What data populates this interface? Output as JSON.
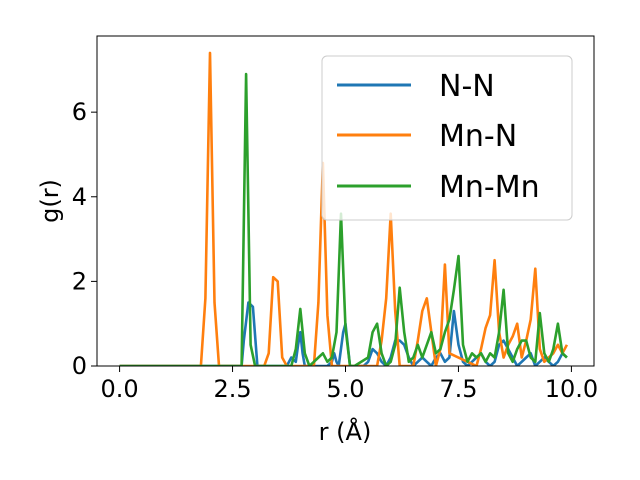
{
  "chart_data": {
    "type": "line",
    "xlabel": "r (Å)",
    "ylabel": "g(r)",
    "xlim": [
      -0.5,
      10.5
    ],
    "ylim": [
      0,
      7.8
    ],
    "xticks": [
      0.0,
      2.5,
      5.0,
      7.5,
      10.0
    ],
    "xtick_labels": [
      "0.0",
      "2.5",
      "5.0",
      "7.5",
      "10.0"
    ],
    "yticks": [
      0,
      2,
      4,
      6
    ],
    "ytick_labels": [
      "0",
      "2",
      "4",
      "6"
    ],
    "grid": false,
    "legend_position": "top-right",
    "series": [
      {
        "name": "N-N",
        "color": "#1f77b4",
        "x": [
          0,
          2.6,
          2.7,
          2.75,
          2.85,
          2.95,
          3.05,
          3.7,
          3.8,
          3.9,
          3.95,
          4.0,
          4.05,
          4.1,
          4.6,
          4.7,
          4.75,
          4.8,
          4.85,
          4.95,
          5.0,
          5.1,
          5.4,
          5.5,
          5.6,
          5.7,
          5.8,
          5.9,
          6.0,
          6.1,
          6.2,
          6.3,
          6.4,
          6.5,
          6.6,
          6.7,
          6.8,
          6.9,
          7.0,
          7.1,
          7.2,
          7.3,
          7.4,
          7.5,
          7.6,
          7.7,
          7.8,
          7.9,
          8.0,
          8.1,
          8.2,
          8.3,
          8.4,
          8.5,
          8.6,
          8.7,
          8.8,
          8.9,
          9.0,
          9.1,
          9.2,
          9.3,
          9.4,
          9.5,
          9.6,
          9.7,
          9.8,
          9.9
        ],
        "y": [
          0,
          0,
          0,
          0.6,
          1.5,
          1.4,
          0,
          0,
          0.2,
          0.1,
          0.5,
          0.8,
          0.3,
          0,
          0,
          0.1,
          0.3,
          0.1,
          0,
          0.8,
          1.0,
          0,
          0,
          0.1,
          0.4,
          0.3,
          0.1,
          0,
          0.2,
          0.6,
          0.6,
          0.5,
          0.2,
          0,
          0.1,
          0.2,
          0.1,
          0,
          0.2,
          0.3,
          0.1,
          0.2,
          1.3,
          0.5,
          0.1,
          0,
          0.1,
          0.2,
          0.3,
          0.1,
          0,
          0.1,
          0.5,
          0.6,
          0.4,
          0.2,
          0,
          0.1,
          0.2,
          0.3,
          0,
          0.1,
          0.2,
          0.1,
          0,
          0.1,
          0.3,
          0.2
        ]
      },
      {
        "name": "Mn-N",
        "color": "#ff7f0e",
        "x": [
          0,
          1.8,
          1.9,
          2.0,
          2.1,
          2.2,
          3.2,
          3.3,
          3.4,
          3.5,
          3.6,
          3.7,
          4.3,
          4.4,
          4.5,
          4.6,
          4.7,
          5.7,
          5.8,
          5.9,
          6.0,
          6.1,
          6.2,
          6.5,
          6.6,
          6.7,
          6.8,
          7.0,
          7.1,
          7.2,
          7.3,
          7.9,
          8.0,
          8.1,
          8.2,
          8.3,
          8.4,
          8.5,
          8.6,
          8.7,
          8.8,
          8.9,
          9.0,
          9.1,
          9.2,
          9.3,
          9.4,
          9.5,
          9.6,
          9.7,
          9.8,
          9.9
        ],
        "y": [
          0,
          0,
          1.6,
          7.4,
          1.5,
          0,
          0,
          0.3,
          2.1,
          2.0,
          0.2,
          0,
          0,
          1.5,
          4.8,
          1.2,
          0,
          0,
          0.6,
          1.6,
          3.6,
          1.3,
          0,
          0,
          0.6,
          1.3,
          1.6,
          0,
          0.4,
          2.4,
          0.3,
          0,
          0.4,
          0.9,
          1.2,
          2.5,
          0.8,
          0.2,
          0.5,
          0.7,
          1.0,
          0.2,
          0.6,
          1.1,
          2.3,
          0.4,
          0.1,
          0.2,
          0.3,
          0.5,
          0.3,
          0.5
        ]
      },
      {
        "name": "Mn-Mn",
        "color": "#2ca02c",
        "x": [
          0,
          2.6,
          2.7,
          2.8,
          2.9,
          3.0,
          3.8,
          3.9,
          4.0,
          4.1,
          4.2,
          4.3,
          4.4,
          4.5,
          4.6,
          4.7,
          4.8,
          4.9,
          5.0,
          5.1,
          5.2,
          5.5,
          5.6,
          5.7,
          5.8,
          5.9,
          6.0,
          6.1,
          6.2,
          6.3,
          6.4,
          6.5,
          6.6,
          6.7,
          6.8,
          6.9,
          7.0,
          7.1,
          7.2,
          7.3,
          7.4,
          7.5,
          7.6,
          7.7,
          7.8,
          7.9,
          8.0,
          8.1,
          8.2,
          8.3,
          8.4,
          8.5,
          8.6,
          8.7,
          8.8,
          8.9,
          9.0,
          9.1,
          9.2,
          9.3,
          9.4,
          9.5,
          9.6,
          9.7,
          9.8,
          9.9
        ],
        "y": [
          0,
          0,
          0,
          6.9,
          0.5,
          0,
          0,
          0.4,
          1.35,
          0.3,
          0,
          0.1,
          0.2,
          0.3,
          0.1,
          0.2,
          0.8,
          3.6,
          0.9,
          0,
          0,
          0.2,
          0.8,
          1.0,
          0.3,
          0,
          0.1,
          0.5,
          1.85,
          0.8,
          0.1,
          0.2,
          0.5,
          0.2,
          0.5,
          0.8,
          0.3,
          0.4,
          0.8,
          1.1,
          1.8,
          2.6,
          0.5,
          0.1,
          0.3,
          0.2,
          0.3,
          0.1,
          0.3,
          0.2,
          0.8,
          1.8,
          0.3,
          0.1,
          0.4,
          0.6,
          0.6,
          0.2,
          0.1,
          1.25,
          0.3,
          0.1,
          0.4,
          1.0,
          0.3,
          0.2
        ]
      }
    ]
  }
}
